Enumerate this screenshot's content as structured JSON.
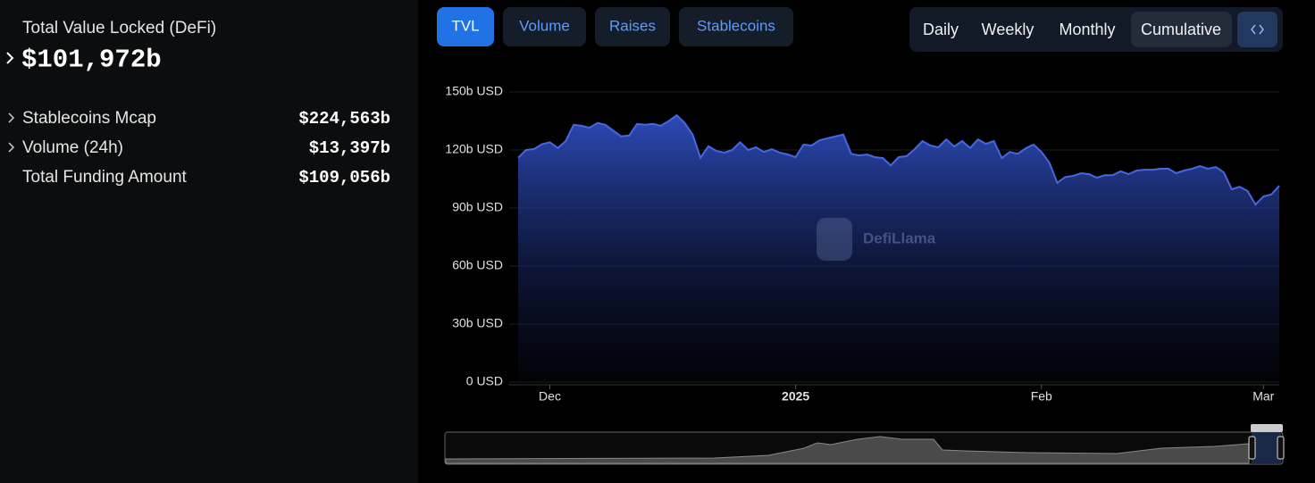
{
  "sidebar": {
    "title": "Total Value Locked (DeFi)",
    "value": "$101,972b",
    "stats": [
      {
        "label": "Stablecoins Mcap",
        "value": "$224,563b"
      },
      {
        "label": "Volume (24h)",
        "value": "$13,397b"
      },
      {
        "label": "Total Funding Amount",
        "value": "$109,056b"
      }
    ]
  },
  "tabs": [
    "TVL",
    "Volume",
    "Raises",
    "Stablecoins"
  ],
  "periods": [
    "Daily",
    "Weekly",
    "Monthly",
    "Cumulative"
  ],
  "chart_data": {
    "type": "area",
    "watermark": "DefiLlama",
    "color": "#4667e0",
    "categories": [
      null,
      null,
      null,
      null,
      "Dec",
      null,
      null,
      null,
      null,
      null,
      null,
      null,
      null,
      null,
      null,
      null,
      null,
      null,
      null,
      null,
      null,
      null,
      null,
      null,
      null,
      null,
      null,
      null,
      null,
      null,
      null,
      null,
      null,
      null,
      null,
      "2025",
      null,
      null,
      null,
      null,
      null,
      null,
      null,
      null,
      null,
      null,
      null,
      null,
      null,
      null,
      null,
      null,
      null,
      null,
      null,
      null,
      null,
      null,
      null,
      null,
      null,
      null,
      null,
      null,
      null,
      null,
      "Feb",
      null,
      null,
      null,
      null,
      null,
      null,
      null,
      null,
      null,
      null,
      null,
      null,
      null,
      null,
      null,
      null,
      null,
      null,
      null,
      null,
      null,
      null,
      null,
      null,
      null,
      null,
      null,
      "Mar",
      null,
      null
    ],
    "values": [
      116,
      120,
      120.5,
      123,
      124,
      121,
      124.6,
      133,
      132.5,
      131.5,
      134,
      133,
      130,
      127,
      127.5,
      133.5,
      133,
      133.5,
      132.5,
      135,
      138,
      134,
      128,
      116,
      122,
      119.5,
      118.6,
      120,
      124,
      120,
      121.4,
      119,
      120.4,
      118.6,
      117.7,
      116.3,
      122.8,
      122.3,
      125,
      126,
      127,
      128,
      118,
      117.2,
      117.7,
      116.3,
      115.8,
      112,
      116.3,
      116.8,
      120.4,
      124.6,
      122.3,
      121.4,
      125.5,
      121.8,
      124.6,
      121,
      125.5,
      123.2,
      124.6,
      115.8,
      119,
      118,
      120.8,
      122.8,
      119,
      113.5,
      103,
      106,
      106.6,
      108,
      107.5,
      105.7,
      107,
      107,
      109,
      107.5,
      109.4,
      109.8,
      109.8,
      110.3,
      110.3,
      108,
      109.4,
      110.3,
      111.7,
      110.3,
      111.2,
      108.4,
      99.7,
      101,
      98.8,
      91.8,
      96,
      97,
      101.5
    ],
    "ylim": [
      0,
      150
    ],
    "yticks": [
      {
        "value": 0,
        "label": "0 USD"
      },
      {
        "value": 30,
        "label": "30b USD"
      },
      {
        "value": 60,
        "label": "60b USD"
      },
      {
        "value": 90,
        "label": "90b USD"
      },
      {
        "value": 120,
        "label": "120b USD"
      },
      {
        "value": 150,
        "label": "150b USD"
      }
    ],
    "grid": true
  }
}
